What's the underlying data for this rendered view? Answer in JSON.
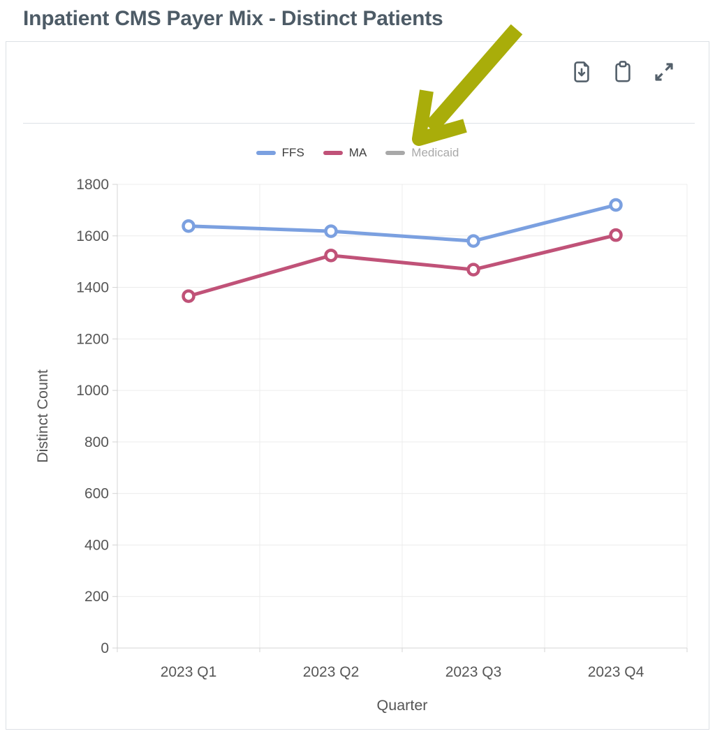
{
  "page": {
    "title": "Inpatient CMS Payer Mix - Distinct Patients"
  },
  "toolbar": {
    "buttons": [
      {
        "icon": "file-download-icon",
        "action": "download"
      },
      {
        "icon": "clipboard-icon",
        "action": "copy"
      },
      {
        "icon": "expand-icon",
        "action": "expand"
      }
    ]
  },
  "chart_data": {
    "type": "line",
    "title": "Inpatient CMS Payer Mix - Distinct Patients",
    "categories": [
      "2023 Q1",
      "2023 Q2",
      "2023 Q3",
      "2023 Q4"
    ],
    "series": [
      {
        "name": "FFS",
        "color": "#7ba0e0",
        "visible": true,
        "values": [
          1638,
          1618,
          1580,
          1720
        ]
      },
      {
        "name": "MA",
        "color": "#c05278",
        "visible": true,
        "values": [
          1366,
          1524,
          1469,
          1603
        ]
      },
      {
        "name": "Medicaid",
        "color": "#a8a8a8",
        "visible": false,
        "values": []
      }
    ],
    "xlabel": "Quarter",
    "ylabel": "Distinct Count",
    "ylim": [
      0,
      1800
    ],
    "ytick_step": 200,
    "grid": true,
    "legend_position": "top",
    "marker": "circle-open"
  },
  "annotation": {
    "type": "arrow",
    "color": "#a9ad0a",
    "points_to": "Medicaid legend item"
  },
  "colors": {
    "title": "#4d5b66",
    "icon": "#54606b",
    "grid_line": "#ececec",
    "axis_line": "#d4d4d4",
    "tick_label": "#565656",
    "legend_disabled": "#a8a8a8",
    "card_border": "#dce0e5",
    "divider": "#dde2e7"
  }
}
